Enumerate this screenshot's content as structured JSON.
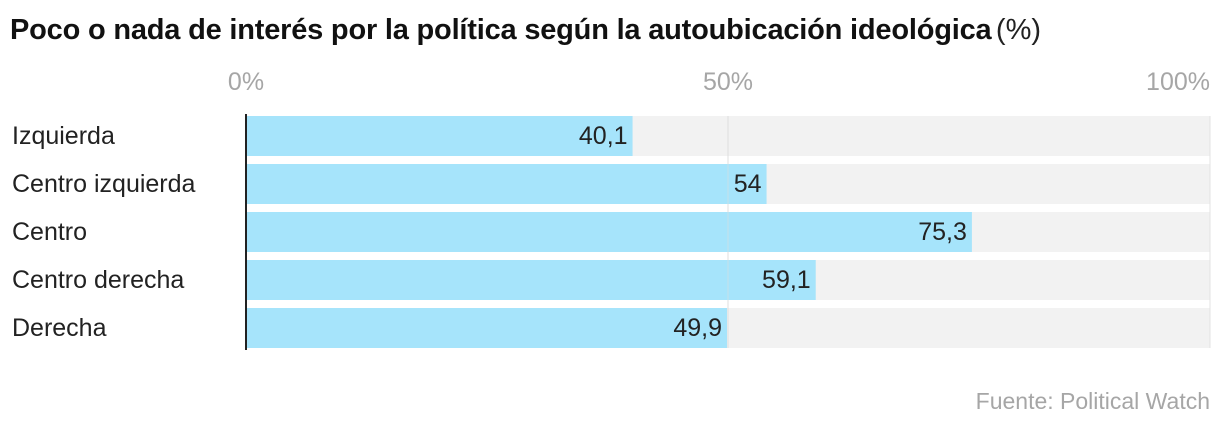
{
  "title": "Poco o nada de interés por la política según la autoubicación ideológica",
  "unit": "(%)",
  "source": "Fuente: Political Watch",
  "colors": {
    "bar": "#a6e4fb",
    "track": "#f2f2f2",
    "tick_text": "#a6a6a6",
    "label_text": "#222222",
    "axis_line": "#222222",
    "grid": "#ffffff"
  },
  "chart_data": {
    "type": "bar",
    "orientation": "horizontal",
    "categories": [
      "Izquierda",
      "Centro izquierda",
      "Centro",
      "Centro derecha",
      "Derecha"
    ],
    "values": [
      40.1,
      54,
      75.3,
      59.1,
      49.9
    ],
    "value_labels": [
      "40,1",
      "54",
      "75,3",
      "59,1",
      "49,9"
    ],
    "xlim": [
      0,
      100
    ],
    "ticks": [
      0,
      50,
      100
    ],
    "tick_labels": [
      "0%",
      "50%",
      "100%"
    ],
    "grid": true
  }
}
